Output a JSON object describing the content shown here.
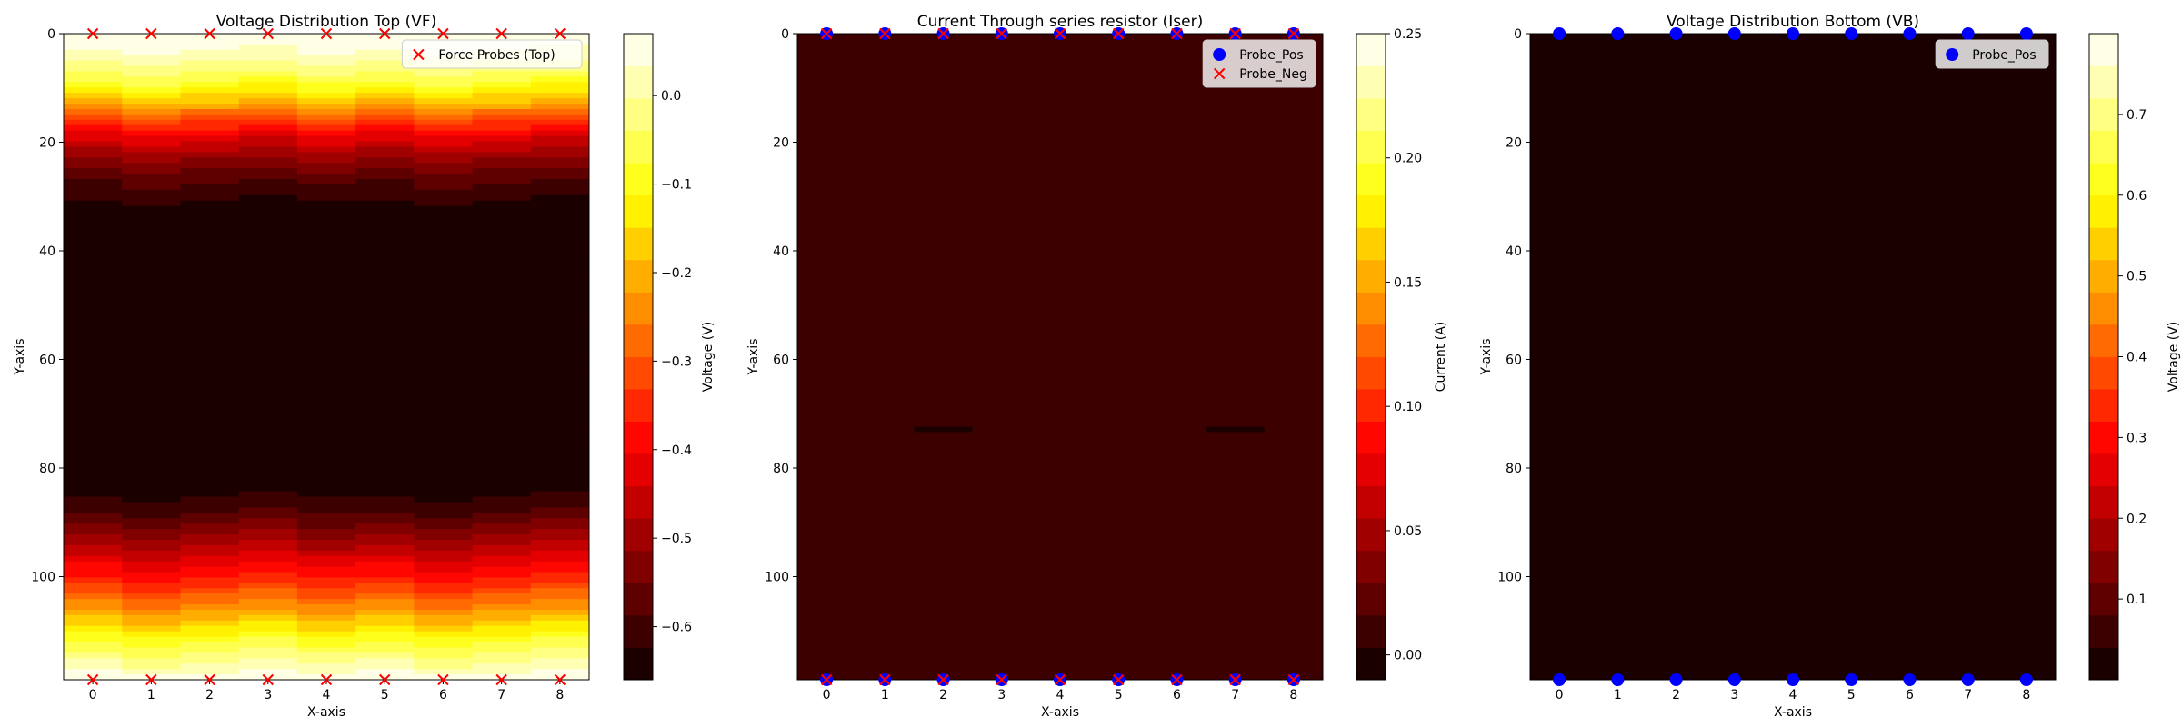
{
  "chart_data": [
    {
      "type": "heatmap",
      "title": "Voltage Distribution Top (VF)",
      "xlabel": "X-axis",
      "ylabel": "Y-axis",
      "xlim": [
        -0.5,
        8.5
      ],
      "ylim": [
        119,
        0
      ],
      "x_ticks": [
        0,
        1,
        2,
        3,
        4,
        5,
        6,
        7,
        8
      ],
      "y_ticks": [
        0,
        20,
        40,
        60,
        80,
        100
      ],
      "colormap": "hot",
      "color_levels": 20,
      "color_range": [
        -0.66,
        0.07
      ],
      "value_profile": {
        "y": [
          0,
          3,
          6,
          9,
          12,
          15,
          18,
          22,
          26,
          30,
          33,
          36,
          40,
          50,
          60,
          70,
          80,
          83,
          86,
          89,
          92,
          95,
          98,
          101,
          104,
          107,
          110,
          113,
          116,
          119
        ],
        "v": [
          0.07,
          0.03,
          -0.02,
          -0.09,
          -0.18,
          -0.3,
          -0.4,
          -0.5,
          -0.57,
          -0.62,
          -0.645,
          -0.655,
          -0.66,
          -0.66,
          -0.66,
          -0.66,
          -0.655,
          -0.645,
          -0.62,
          -0.58,
          -0.53,
          -0.47,
          -0.41,
          -0.36,
          -0.29,
          -0.22,
          -0.14,
          -0.07,
          -0.01,
          0.05
        ]
      },
      "colorbar": {
        "label": "Voltage (V)",
        "ticks": [
          0.0,
          -0.1,
          -0.2,
          -0.3,
          -0.4,
          -0.5,
          -0.6
        ],
        "tick_labels": [
          "0.0",
          "−0.1",
          "−0.2",
          "−0.3",
          "−0.4",
          "−0.5",
          "−0.6"
        ]
      },
      "series": [
        {
          "name": "Force Probes (Top)",
          "marker": "x",
          "color": "#ff0000",
          "x": [
            0,
            1,
            2,
            3,
            4,
            5,
            6,
            7,
            8,
            0,
            1,
            2,
            3,
            4,
            5,
            6,
            7,
            8
          ],
          "y": [
            0,
            0,
            0,
            0,
            0,
            0,
            0,
            0,
            0,
            119,
            119,
            119,
            119,
            119,
            119,
            119,
            119,
            119
          ]
        }
      ],
      "legend": {
        "position": "top-right",
        "entries": [
          "Force Probes (Top)"
        ]
      }
    },
    {
      "type": "heatmap",
      "title": "Current Through series resistor (Iser)",
      "xlabel": "X-axis",
      "ylabel": "Y-axis",
      "xlim": [
        -0.5,
        8.5
      ],
      "ylim": [
        119,
        0
      ],
      "x_ticks": [
        0,
        1,
        2,
        3,
        4,
        5,
        6,
        7,
        8
      ],
      "y_ticks": [
        0,
        20,
        40,
        60,
        80,
        100
      ],
      "colormap": "hot",
      "color_levels": 20,
      "color_range": [
        -0.01,
        0.25
      ],
      "value_profile": {
        "y": [
          0,
          46,
          47,
          72,
          73,
          119
        ],
        "v": [
          0.003,
          0.003,
          0.012,
          0.012,
          0.003,
          0.003
        ]
      },
      "colorbar": {
        "label": "Current (A)",
        "ticks": [
          0.0,
          0.05,
          0.1,
          0.15,
          0.2,
          0.25
        ],
        "tick_labels": [
          "0.00",
          "0.05",
          "0.10",
          "0.15",
          "0.20",
          "0.25"
        ]
      },
      "series": [
        {
          "name": "Probe_Pos",
          "marker": "o",
          "color": "#0000ff",
          "x": [
            0,
            1,
            2,
            3,
            4,
            5,
            6,
            7,
            8,
            0,
            1,
            2,
            3,
            4,
            5,
            6,
            7,
            8
          ],
          "y": [
            0,
            0,
            0,
            0,
            0,
            0,
            0,
            0,
            0,
            119,
            119,
            119,
            119,
            119,
            119,
            119,
            119,
            119
          ]
        },
        {
          "name": "Probe_Neg",
          "marker": "x",
          "color": "#ff0000",
          "x": [
            0,
            1,
            2,
            3,
            4,
            5,
            6,
            7,
            8,
            0,
            1,
            2,
            3,
            4,
            5,
            6,
            7,
            8
          ],
          "y": [
            0,
            0,
            0,
            0,
            0,
            0,
            0,
            0,
            0,
            119,
            119,
            119,
            119,
            119,
            119,
            119,
            119,
            119
          ]
        }
      ],
      "legend": {
        "position": "top-right",
        "entries": [
          "Probe_Pos",
          "Probe_Neg"
        ]
      }
    },
    {
      "type": "heatmap",
      "title": "Voltage Distribution Bottom (VB)",
      "xlabel": "X-axis",
      "ylabel": "Y-axis",
      "xlim": [
        -0.5,
        8.5
      ],
      "ylim": [
        119,
        0
      ],
      "x_ticks": [
        0,
        1,
        2,
        3,
        4,
        5,
        6,
        7,
        8
      ],
      "y_ticks": [
        0,
        20,
        40,
        60,
        80,
        100
      ],
      "colormap": "hot",
      "color_levels": 20,
      "color_range": [
        0.0,
        0.8
      ],
      "value_profile": {
        "y": [
          0,
          12,
          13,
          106,
          107,
          119
        ],
        "v": [
          0.015,
          0.015,
          0.04,
          0.04,
          0.015,
          0.015
        ]
      },
      "colorbar": {
        "label": "Voltage (V)",
        "ticks": [
          0.1,
          0.2,
          0.3,
          0.4,
          0.5,
          0.6,
          0.7
        ],
        "tick_labels": [
          "0.1",
          "0.2",
          "0.3",
          "0.4",
          "0.5",
          "0.6",
          "0.7"
        ]
      },
      "series": [
        {
          "name": "Probe_Pos",
          "marker": "o",
          "color": "#0000ff",
          "x": [
            0,
            1,
            2,
            3,
            4,
            5,
            6,
            7,
            8,
            0,
            1,
            2,
            3,
            4,
            5,
            6,
            7,
            8
          ],
          "y": [
            0,
            0,
            0,
            0,
            0,
            0,
            0,
            0,
            0,
            119,
            119,
            119,
            119,
            119,
            119,
            119,
            119,
            119
          ]
        }
      ],
      "legend": {
        "position": "top-right",
        "entries": [
          "Probe_Pos"
        ]
      }
    }
  ]
}
